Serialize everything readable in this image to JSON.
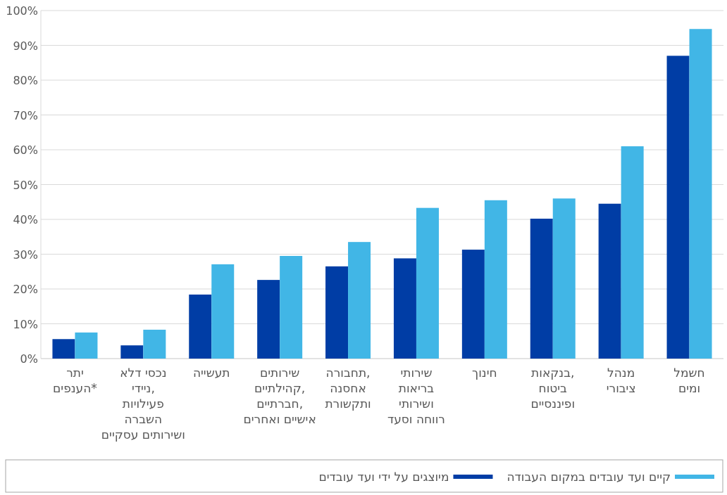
{
  "chart_data": {
    "type": "bar",
    "categories": [
      "יתר\nהענפים*",
      "נכסי דלא\nניידי,\nפעילויות\nהשברה\nושירותים עסקיים",
      "תעשייה",
      "שירותים\nקהילתיים,\nחברתיים,\nאישיים ואחרים",
      "תחבורה,\nאחסנה\nותקשורת",
      "שירותי\nבריאות\nושירותי\nרווחה וסעד",
      "חינוך",
      "בנקאות,\nביטוח\nופיננסיים",
      "מנהל\nציבורי",
      "חשמל\nומים"
    ],
    "series": [
      {
        "name": "מיוצגים על ידי ועד עובדים",
        "color": "#003da5",
        "values": [
          5.6,
          3.8,
          18.4,
          22.6,
          26.5,
          28.8,
          31.3,
          40.2,
          44.5,
          87.0
        ]
      },
      {
        "name": "קיים ועד עובדים במקום העבודה",
        "color": "#41b6e6",
        "values": [
          7.5,
          8.3,
          27.1,
          29.5,
          33.5,
          43.3,
          45.5,
          46.0,
          61.0,
          94.7
        ]
      }
    ],
    "ylim": [
      0,
      100
    ],
    "yticks": [
      {
        "value": 0,
        "label": "0%"
      },
      {
        "value": 10,
        "label": "10%"
      },
      {
        "value": 20,
        "label": "20%"
      },
      {
        "value": 30,
        "label": "30%"
      },
      {
        "value": 40,
        "label": "40%"
      },
      {
        "value": 50,
        "label": "50%"
      },
      {
        "value": 60,
        "label": "60%"
      },
      {
        "value": 70,
        "label": "70%"
      },
      {
        "value": 80,
        "label": "80%"
      },
      {
        "value": 90,
        "label": "90%"
      },
      {
        "value": 100,
        "label": "100%"
      }
    ],
    "grid": "y",
    "legend": "bottom"
  }
}
